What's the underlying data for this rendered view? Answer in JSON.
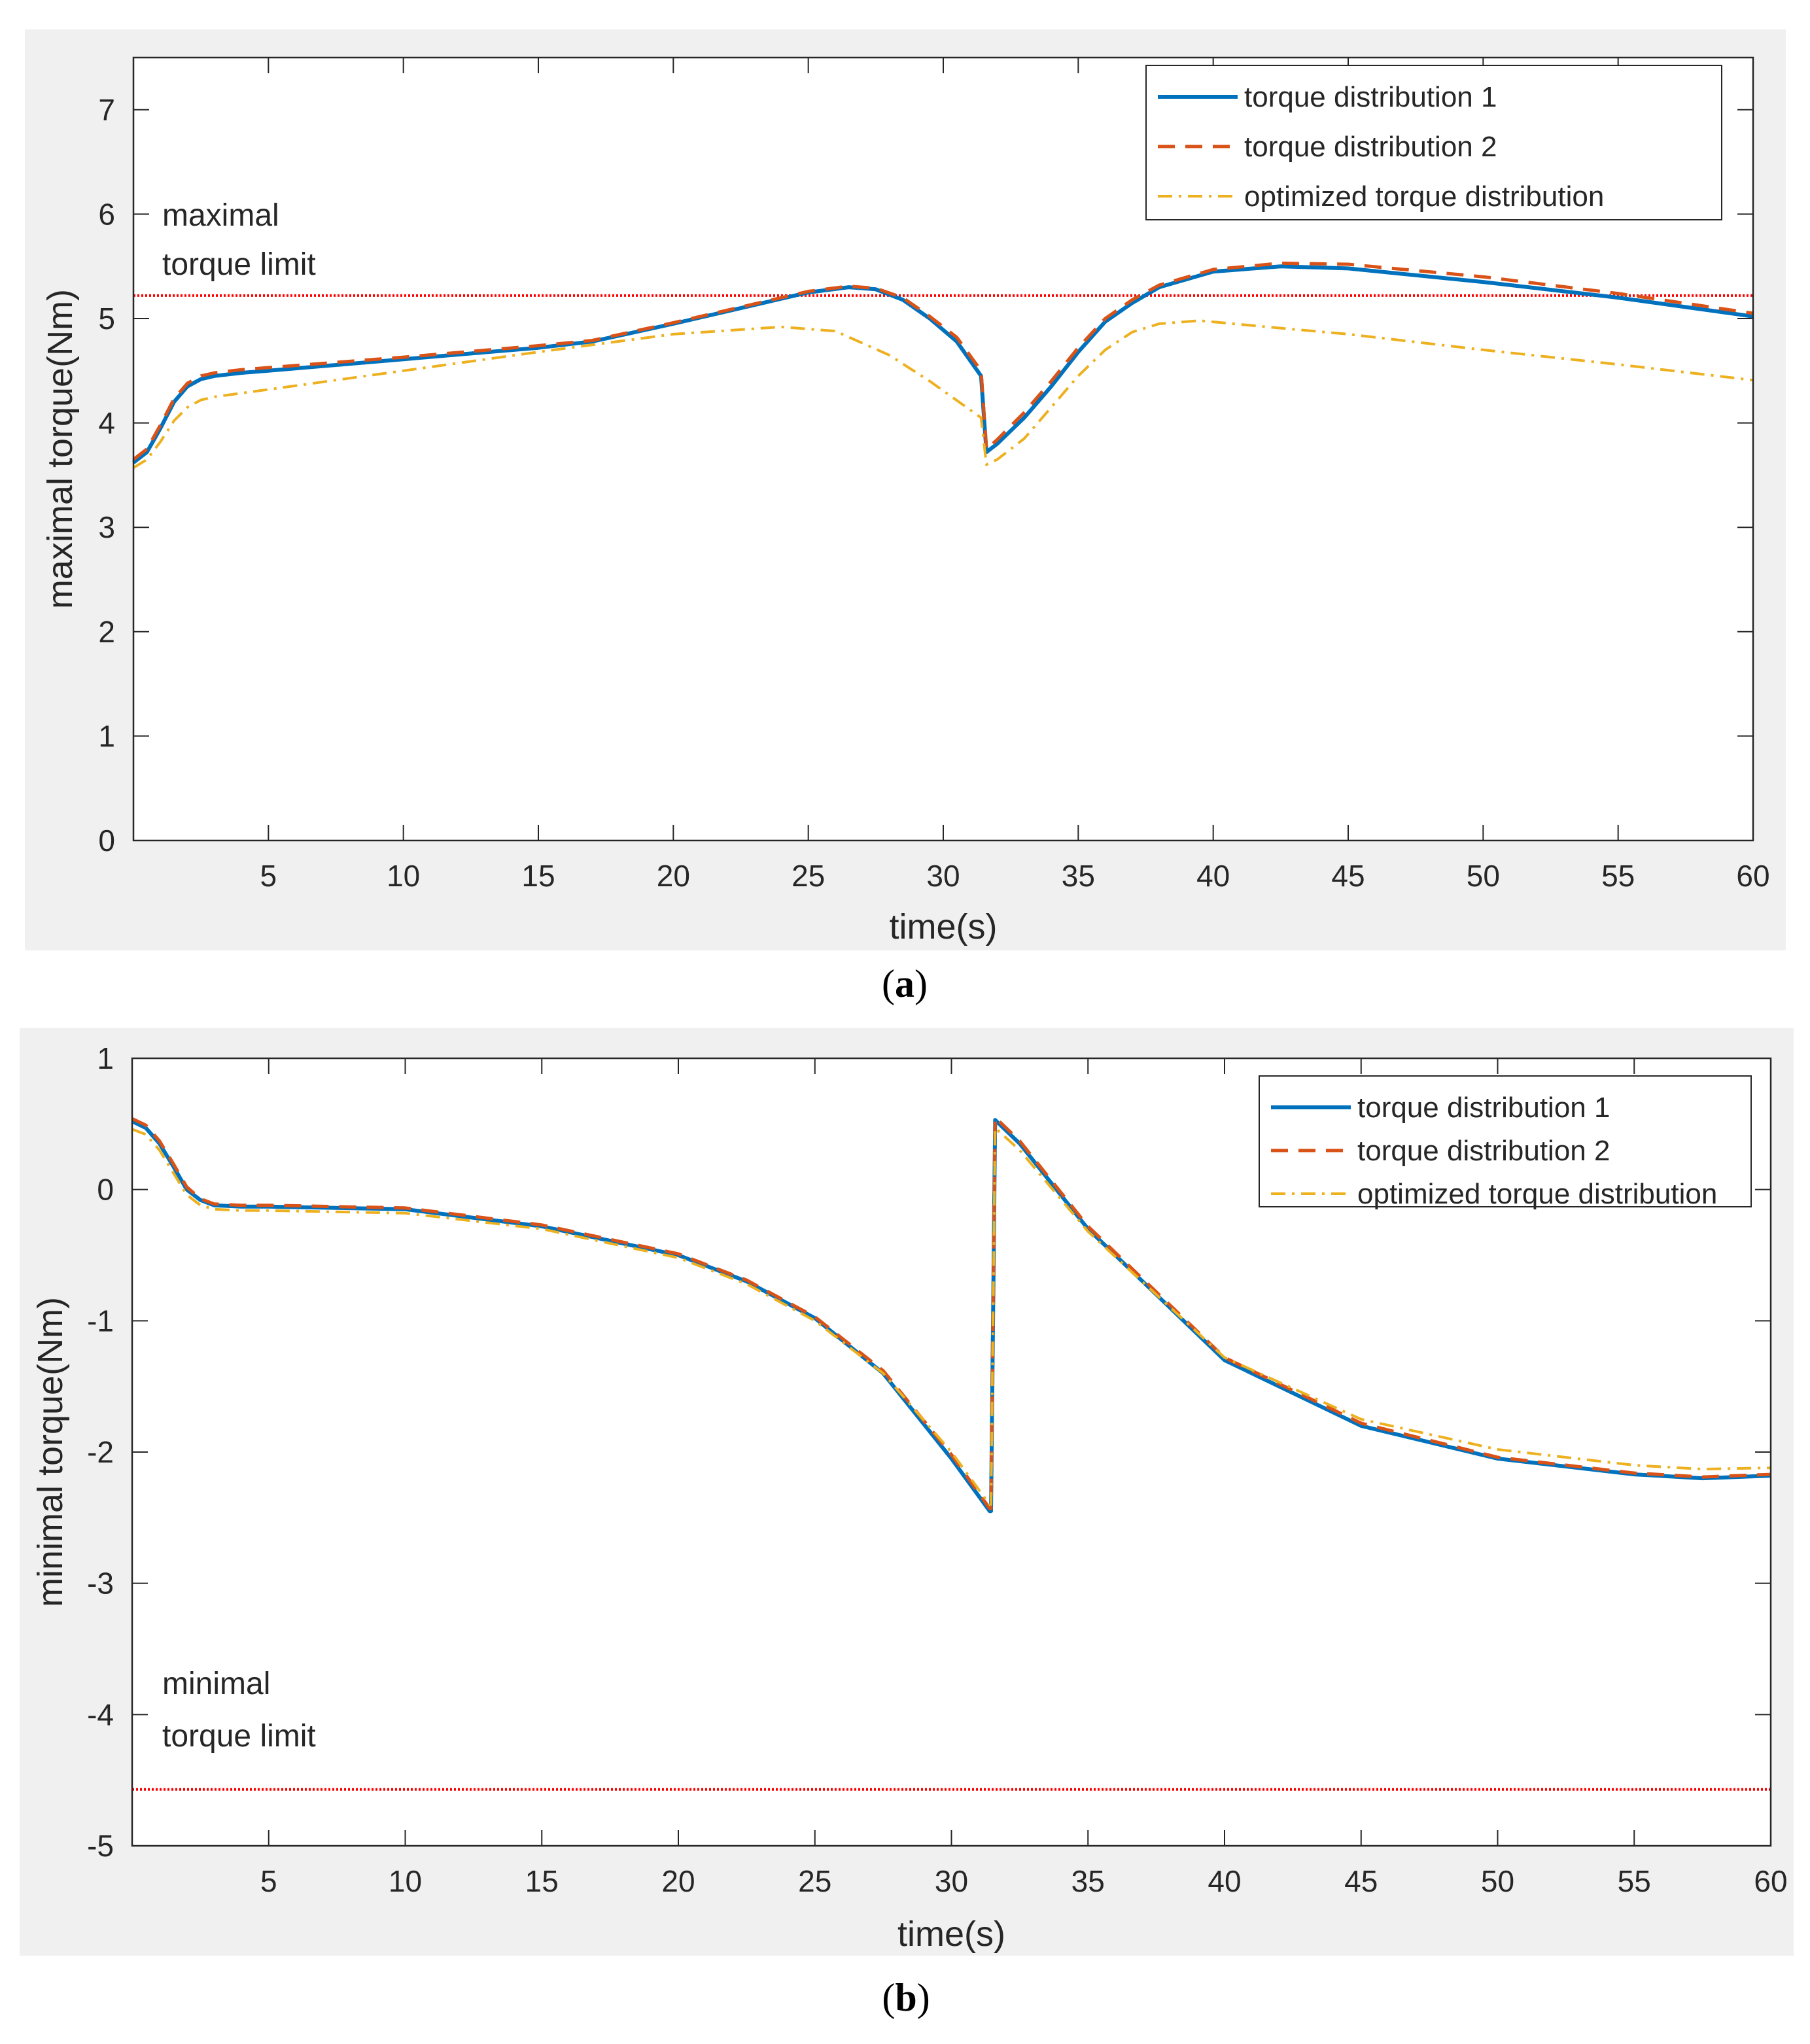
{
  "figure_captions": [
    "a",
    "b"
  ],
  "chart_data": [
    {
      "type": "line",
      "xlabel": "time(s)",
      "ylabel": "maximal torque(Nm)",
      "xlim": [
        0,
        60
      ],
      "ylim": [
        0,
        7.5
      ],
      "xticks": [
        5,
        10,
        15,
        20,
        25,
        30,
        35,
        40,
        45,
        50,
        55,
        60
      ],
      "yticks": [
        0,
        1,
        2,
        3,
        4,
        5,
        6,
        7
      ],
      "annotation": [
        "maximal",
        "torque limit"
      ],
      "limit_line": {
        "value": 5.22,
        "color": "#ff0000"
      },
      "legend_position": "top-right",
      "series": [
        {
          "name": "torque distribution 1",
          "color": "#0072bd",
          "style": "solid",
          "x": [
            0,
            0.5,
            1,
            1.5,
            2,
            2.5,
            3,
            4,
            5,
            10,
            15,
            17,
            20,
            25,
            26.5,
            27.5,
            28.5,
            29.5,
            30.5,
            31.4,
            31.6,
            32,
            33,
            34,
            35,
            36,
            37,
            38,
            40,
            42.5,
            45,
            50,
            55,
            60
          ],
          "y": [
            3.62,
            3.72,
            3.95,
            4.2,
            4.35,
            4.42,
            4.45,
            4.48,
            4.5,
            4.61,
            4.72,
            4.78,
            4.95,
            5.25,
            5.3,
            5.28,
            5.18,
            5.0,
            4.78,
            4.45,
            3.72,
            3.8,
            4.05,
            4.35,
            4.68,
            4.97,
            5.15,
            5.3,
            5.45,
            5.5,
            5.48,
            5.35,
            5.2,
            5.02
          ]
        },
        {
          "name": "torque distribution 2",
          "color": "#d95319",
          "style": "dashed",
          "x": [
            0,
            0.5,
            1,
            1.5,
            2,
            2.5,
            3,
            4,
            5,
            10,
            15,
            17,
            20,
            25,
            26.5,
            27.5,
            28.5,
            29.5,
            30.5,
            31.4,
            31.6,
            32,
            33,
            34,
            35,
            36,
            37,
            38,
            40,
            42.5,
            45,
            50,
            55,
            60
          ],
          "y": [
            3.65,
            3.75,
            3.98,
            4.23,
            4.38,
            4.45,
            4.48,
            4.51,
            4.53,
            4.63,
            4.74,
            4.79,
            4.96,
            5.26,
            5.31,
            5.29,
            5.2,
            5.02,
            4.82,
            4.5,
            3.75,
            3.84,
            4.1,
            4.4,
            4.72,
            5.0,
            5.18,
            5.32,
            5.47,
            5.53,
            5.52,
            5.4,
            5.24,
            5.05
          ]
        },
        {
          "name": "optimized torque distribution",
          "color": "#edb120",
          "style": "dashdot",
          "x": [
            0,
            0.5,
            1,
            1.5,
            2,
            2.5,
            3,
            5,
            10,
            15,
            20,
            24,
            26,
            28,
            29.5,
            31.4,
            31.6,
            32,
            33,
            34,
            35,
            36,
            37,
            38,
            39.5,
            42,
            45,
            50,
            55,
            60
          ],
          "y": [
            3.57,
            3.65,
            3.82,
            4.02,
            4.15,
            4.22,
            4.25,
            4.32,
            4.5,
            4.68,
            4.85,
            4.92,
            4.88,
            4.65,
            4.4,
            4.05,
            3.6,
            3.65,
            3.85,
            4.15,
            4.45,
            4.7,
            4.87,
            4.95,
            4.98,
            4.92,
            4.85,
            4.7,
            4.56,
            4.41
          ]
        }
      ]
    },
    {
      "type": "line",
      "xlabel": "time(s)",
      "ylabel": "minimal torque(Nm)",
      "xlim": [
        0,
        60
      ],
      "ylim": [
        -5,
        1
      ],
      "xticks": [
        5,
        10,
        15,
        20,
        25,
        30,
        35,
        40,
        45,
        50,
        55,
        60
      ],
      "yticks": [
        1,
        0,
        -1,
        -2,
        -3,
        -4,
        -5
      ],
      "annotation": [
        "minimal",
        "torque limit"
      ],
      "limit_line": {
        "value": -4.57,
        "color": "#ff0000"
      },
      "legend_position": "top-right",
      "series": [
        {
          "name": "torque distribution 1",
          "color": "#0072bd",
          "style": "solid",
          "x": [
            0,
            0.5,
            1,
            1.5,
            2,
            2.5,
            3,
            4,
            5,
            10,
            15,
            20,
            22.5,
            25,
            27.5,
            30,
            31.4,
            31.45,
            31.6,
            32.5,
            35,
            40,
            45,
            50,
            55,
            57.5,
            60
          ],
          "y": [
            0.52,
            0.47,
            0.35,
            0.18,
            0.0,
            -0.08,
            -0.12,
            -0.13,
            -0.13,
            -0.15,
            -0.28,
            -0.5,
            -0.7,
            -0.98,
            -1.4,
            -2.05,
            -2.45,
            -2.45,
            0.53,
            0.35,
            -0.3,
            -1.3,
            -1.8,
            -2.05,
            -2.17,
            -2.2,
            -2.18
          ]
        },
        {
          "name": "torque distribution 2",
          "color": "#d95319",
          "style": "dashed",
          "x": [
            0,
            0.5,
            1,
            1.5,
            2,
            2.5,
            3,
            4,
            5,
            10,
            15,
            20,
            22.5,
            25,
            27.5,
            30,
            31.4,
            31.45,
            31.6,
            32.5,
            35,
            40,
            45,
            50,
            55,
            57.5,
            60
          ],
          "y": [
            0.54,
            0.49,
            0.37,
            0.2,
            0.02,
            -0.07,
            -0.11,
            -0.12,
            -0.12,
            -0.14,
            -0.27,
            -0.49,
            -0.69,
            -0.97,
            -1.38,
            -2.02,
            -2.43,
            -2.43,
            0.55,
            0.37,
            -0.28,
            -1.28,
            -1.78,
            -2.04,
            -2.16,
            -2.19,
            -2.17
          ]
        },
        {
          "name": "optimized torque distribution",
          "color": "#edb120",
          "style": "dashdot",
          "x": [
            0,
            0.5,
            1,
            1.5,
            2,
            2.5,
            3,
            4,
            5,
            10,
            15,
            20,
            22.5,
            25,
            27.5,
            30,
            31.4,
            31.45,
            31.6,
            32.5,
            35,
            40,
            45,
            50,
            55,
            57.5,
            60
          ],
          "y": [
            0.46,
            0.42,
            0.3,
            0.13,
            -0.04,
            -0.12,
            -0.15,
            -0.16,
            -0.16,
            -0.18,
            -0.3,
            -0.52,
            -0.72,
            -1.0,
            -1.4,
            -2.0,
            -2.4,
            -2.4,
            0.47,
            0.3,
            -0.32,
            -1.28,
            -1.75,
            -1.98,
            -2.1,
            -2.13,
            -2.12
          ]
        }
      ]
    }
  ]
}
